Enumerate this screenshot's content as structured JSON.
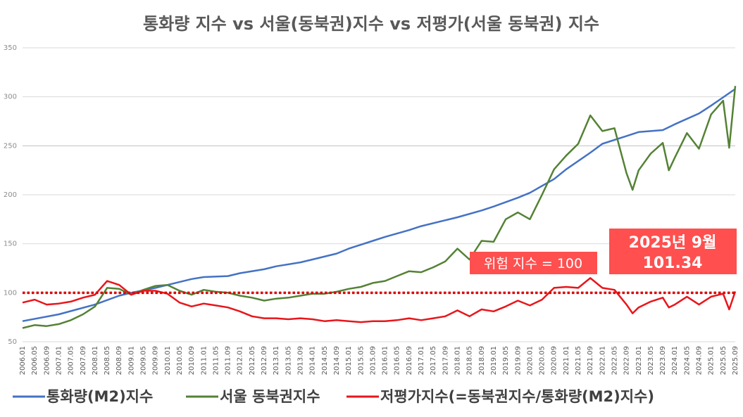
{
  "chart_data": {
    "type": "line",
    "title": "통화량 지수 vs 서울(동북권)지수 vs 저평가(서울 동북권) 지수",
    "ylim": [
      50,
      350
    ],
    "yticks": [
      50,
      100,
      150,
      200,
      250,
      300,
      350
    ],
    "grid": "horizontal",
    "legend_position": "bottom",
    "x_start": "2006.01",
    "x_end": "2025.09",
    "x_tick_labels": [
      "2006.01",
      "2006.05",
      "2006.09",
      "2007.01",
      "2007.05",
      "2007.09",
      "2008.01",
      "2008.05",
      "2008.09",
      "2009.01",
      "2009.05",
      "2009.09",
      "2010.01",
      "2010.05",
      "2010.09",
      "2011.01",
      "2011.05",
      "2011.09",
      "2012.01",
      "2012.05",
      "2012.09",
      "2013.01",
      "2013.05",
      "2013.09",
      "2014.01",
      "2014.05",
      "2014.09",
      "2015.01",
      "2015.05",
      "2015.09",
      "2016.01",
      "2016.05",
      "2016.09",
      "2017.01",
      "2017.05",
      "2017.09",
      "2018.01",
      "2018.05",
      "2018.09",
      "2019.01",
      "2019.05",
      "2019.09",
      "2020.01",
      "2020.05",
      "2020.09",
      "2021.01",
      "2021.05",
      "2021.09",
      "2022.01",
      "2022.05",
      "2022.09",
      "2023.01",
      "2023.05",
      "2023.09",
      "2024.01",
      "2024.05",
      "2024.09",
      "2025.01",
      "2025.05",
      "2025.09"
    ],
    "series": [
      {
        "name": "통화량(M2)지수",
        "color": "#4472c4",
        "points": [
          [
            "2006.01",
            71
          ],
          [
            "2007.01",
            78
          ],
          [
            "2008.01",
            88
          ],
          [
            "2008.09",
            97
          ],
          [
            "2009.01",
            100
          ],
          [
            "2009.09",
            105
          ],
          [
            "2010.01",
            108
          ],
          [
            "2010.09",
            114
          ],
          [
            "2011.01",
            116
          ],
          [
            "2011.09",
            117
          ],
          [
            "2012.01",
            120
          ],
          [
            "2012.09",
            124
          ],
          [
            "2013.01",
            127
          ],
          [
            "2013.09",
            131
          ],
          [
            "2014.01",
            134
          ],
          [
            "2014.09",
            140
          ],
          [
            "2015.01",
            145
          ],
          [
            "2015.09",
            153
          ],
          [
            "2016.01",
            157
          ],
          [
            "2016.09",
            164
          ],
          [
            "2017.01",
            168
          ],
          [
            "2017.09",
            174
          ],
          [
            "2018.01",
            177
          ],
          [
            "2018.09",
            184
          ],
          [
            "2019.01",
            188
          ],
          [
            "2019.09",
            197
          ],
          [
            "2020.01",
            202
          ],
          [
            "2020.09",
            216
          ],
          [
            "2021.01",
            226
          ],
          [
            "2021.09",
            243
          ],
          [
            "2022.01",
            252
          ],
          [
            "2022.09",
            260
          ],
          [
            "2023.01",
            264
          ],
          [
            "2023.09",
            266
          ],
          [
            "2024.01",
            272
          ],
          [
            "2024.09",
            283
          ],
          [
            "2025.01",
            291
          ],
          [
            "2025.09",
            308
          ]
        ]
      },
      {
        "name": "서울 동북권지수",
        "color": "#548235",
        "points": [
          [
            "2006.01",
            64
          ],
          [
            "2006.05",
            67
          ],
          [
            "2006.09",
            66
          ],
          [
            "2007.01",
            68
          ],
          [
            "2007.05",
            72
          ],
          [
            "2007.09",
            78
          ],
          [
            "2008.01",
            86
          ],
          [
            "2008.05",
            105
          ],
          [
            "2008.09",
            104
          ],
          [
            "2009.01",
            98
          ],
          [
            "2009.05",
            103
          ],
          [
            "2009.09",
            107
          ],
          [
            "2010.01",
            108
          ],
          [
            "2010.05",
            102
          ],
          [
            "2010.09",
            98
          ],
          [
            "2011.01",
            103
          ],
          [
            "2011.05",
            101
          ],
          [
            "2011.09",
            100
          ],
          [
            "2012.01",
            97
          ],
          [
            "2012.05",
            95
          ],
          [
            "2012.09",
            92
          ],
          [
            "2013.01",
            94
          ],
          [
            "2013.05",
            95
          ],
          [
            "2013.09",
            97
          ],
          [
            "2014.01",
            99
          ],
          [
            "2014.05",
            99
          ],
          [
            "2014.09",
            101
          ],
          [
            "2015.01",
            104
          ],
          [
            "2015.05",
            106
          ],
          [
            "2015.09",
            110
          ],
          [
            "2016.01",
            112
          ],
          [
            "2016.05",
            117
          ],
          [
            "2016.09",
            122
          ],
          [
            "2017.01",
            121
          ],
          [
            "2017.05",
            126
          ],
          [
            "2017.09",
            132
          ],
          [
            "2018.01",
            145
          ],
          [
            "2018.05",
            134
          ],
          [
            "2018.09",
            153
          ],
          [
            "2019.01",
            152
          ],
          [
            "2019.05",
            175
          ],
          [
            "2019.09",
            182
          ],
          [
            "2020.01",
            175
          ],
          [
            "2020.05",
            200
          ],
          [
            "2020.09",
            226
          ],
          [
            "2021.01",
            240
          ],
          [
            "2021.05",
            252
          ],
          [
            "2021.09",
            281
          ],
          [
            "2022.01",
            265
          ],
          [
            "2022.05",
            268
          ],
          [
            "2022.09",
            222
          ],
          [
            "2022.11",
            205
          ],
          [
            "2023.01",
            225
          ],
          [
            "2023.05",
            242
          ],
          [
            "2023.09",
            253
          ],
          [
            "2023.11",
            225
          ],
          [
            "2024.01",
            238
          ],
          [
            "2024.05",
            263
          ],
          [
            "2024.09",
            247
          ],
          [
            "2025.01",
            282
          ],
          [
            "2025.05",
            296
          ],
          [
            "2025.07",
            248
          ],
          [
            "2025.09",
            311
          ]
        ]
      },
      {
        "name": "저평가지수(=동북권지수/통화량(M2)지수)",
        "color": "#e8161b",
        "points": [
          [
            "2006.01",
            90
          ],
          [
            "2006.05",
            93
          ],
          [
            "2006.09",
            88
          ],
          [
            "2007.01",
            89
          ],
          [
            "2007.05",
            91
          ],
          [
            "2007.09",
            95
          ],
          [
            "2008.01",
            98
          ],
          [
            "2008.05",
            112
          ],
          [
            "2008.09",
            108
          ],
          [
            "2009.01",
            98
          ],
          [
            "2009.05",
            102
          ],
          [
            "2009.09",
            102
          ],
          [
            "2010.01",
            99
          ],
          [
            "2010.05",
            90
          ],
          [
            "2010.09",
            86
          ],
          [
            "2011.01",
            89
          ],
          [
            "2011.05",
            87
          ],
          [
            "2011.09",
            85
          ],
          [
            "2012.01",
            81
          ],
          [
            "2012.05",
            76
          ],
          [
            "2012.09",
            74
          ],
          [
            "2013.01",
            74
          ],
          [
            "2013.05",
            73
          ],
          [
            "2013.09",
            74
          ],
          [
            "2014.01",
            73
          ],
          [
            "2014.05",
            71
          ],
          [
            "2014.09",
            72
          ],
          [
            "2015.01",
            71
          ],
          [
            "2015.05",
            70
          ],
          [
            "2015.09",
            71
          ],
          [
            "2016.01",
            71
          ],
          [
            "2016.05",
            72
          ],
          [
            "2016.09",
            74
          ],
          [
            "2017.01",
            72
          ],
          [
            "2017.05",
            74
          ],
          [
            "2017.09",
            76
          ],
          [
            "2018.01",
            82
          ],
          [
            "2018.05",
            76
          ],
          [
            "2018.09",
            83
          ],
          [
            "2019.01",
            81
          ],
          [
            "2019.05",
            86
          ],
          [
            "2019.09",
            92
          ],
          [
            "2020.01",
            87
          ],
          [
            "2020.05",
            93
          ],
          [
            "2020.09",
            105
          ],
          [
            "2021.01",
            106
          ],
          [
            "2021.05",
            105
          ],
          [
            "2021.09",
            115
          ],
          [
            "2022.01",
            105
          ],
          [
            "2022.05",
            103
          ],
          [
            "2022.09",
            88
          ],
          [
            "2022.11",
            79
          ],
          [
            "2023.01",
            85
          ],
          [
            "2023.05",
            91
          ],
          [
            "2023.09",
            95
          ],
          [
            "2023.11",
            85
          ],
          [
            "2024.01",
            88
          ],
          [
            "2024.05",
            96
          ],
          [
            "2024.09",
            88
          ],
          [
            "2025.01",
            96
          ],
          [
            "2025.05",
            99
          ],
          [
            "2025.07",
            83
          ],
          [
            "2025.09",
            101.34
          ]
        ]
      }
    ],
    "annotations": [
      {
        "text": "위험 지수 = 100",
        "color": "#ff4f4f"
      },
      {
        "text_line1": "2025년 9월",
        "text_line2": "101.34",
        "color": "#ff4f4f"
      }
    ],
    "reference_line": {
      "value": 100,
      "color": "#e00000",
      "style": "dotted"
    }
  }
}
